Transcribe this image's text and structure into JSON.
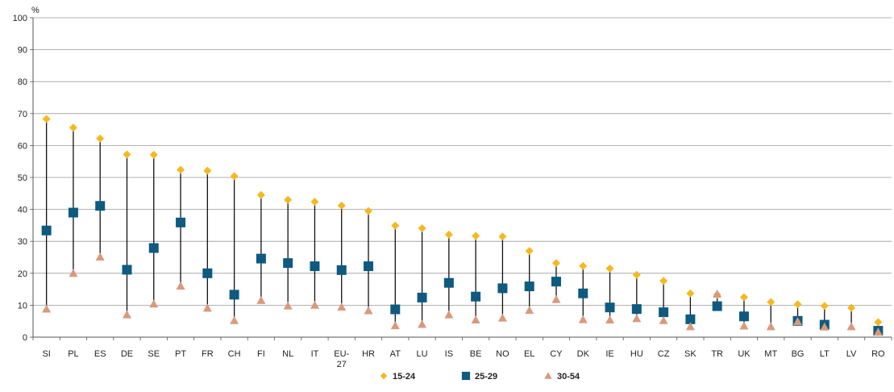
{
  "chart_data": {
    "type": "scatter",
    "title": "",
    "xlabel": "",
    "ylabel": "%",
    "ylim": [
      0,
      100
    ],
    "yticks": [
      0,
      10,
      20,
      30,
      40,
      50,
      60,
      70,
      80,
      90,
      100
    ],
    "grid": true,
    "legend_position": "bottom-center",
    "categories": [
      "SI",
      "PL",
      "ES",
      "DE",
      "SE",
      "PT",
      "FR",
      "CH",
      "FI",
      "NL",
      "IT",
      "EU-27",
      "HR",
      "AT",
      "LU",
      "IS",
      "BE",
      "NO",
      "EL",
      "CY",
      "DK",
      "IE",
      "HU",
      "CZ",
      "SK",
      "TR",
      "UK",
      "MT",
      "BG",
      "LT",
      "LV",
      "RO"
    ],
    "series": [
      {
        "name": "15-24",
        "marker": "diamond",
        "color": "#F5B820",
        "values": [
          68.3,
          65.6,
          62.2,
          57.2,
          57.1,
          52.4,
          52.1,
          50.4,
          44.5,
          43.0,
          42.4,
          41.2,
          39.5,
          34.9,
          34.1,
          32.1,
          31.7,
          31.5,
          27.0,
          23.2,
          22.3,
          21.5,
          19.5,
          17.6,
          13.7,
          13.3,
          12.5,
          11.0,
          10.3,
          9.8,
          9.2,
          4.7
        ]
      },
      {
        "name": "25-29",
        "marker": "square",
        "color": "#0E5A80",
        "values": [
          33.4,
          39.0,
          41.1,
          21.1,
          27.9,
          35.9,
          20.0,
          13.3,
          24.6,
          23.2,
          22.2,
          21.0,
          22.2,
          8.7,
          12.4,
          17.0,
          12.7,
          15.3,
          15.9,
          17.4,
          13.7,
          9.3,
          8.8,
          7.8,
          5.6,
          9.7,
          6.5,
          null,
          5.1,
          3.9,
          null,
          2.0
        ]
      },
      {
        "name": "30-54",
        "marker": "triangle",
        "color": "#D9997D",
        "values": [
          8.8,
          20.0,
          25.1,
          7.0,
          10.4,
          16.0,
          9.1,
          5.2,
          11.5,
          9.8,
          10.0,
          9.4,
          8.3,
          3.6,
          4.0,
          7.0,
          5.4,
          6.0,
          8.4,
          11.8,
          5.5,
          5.4,
          5.8,
          5.2,
          3.3,
          13.5,
          3.5,
          3.3,
          4.9,
          3.2,
          3.3,
          1.6
        ]
      }
    ]
  },
  "colors": {
    "line": "#111111",
    "grid": "#9a9a9a",
    "axis": "#555555"
  }
}
